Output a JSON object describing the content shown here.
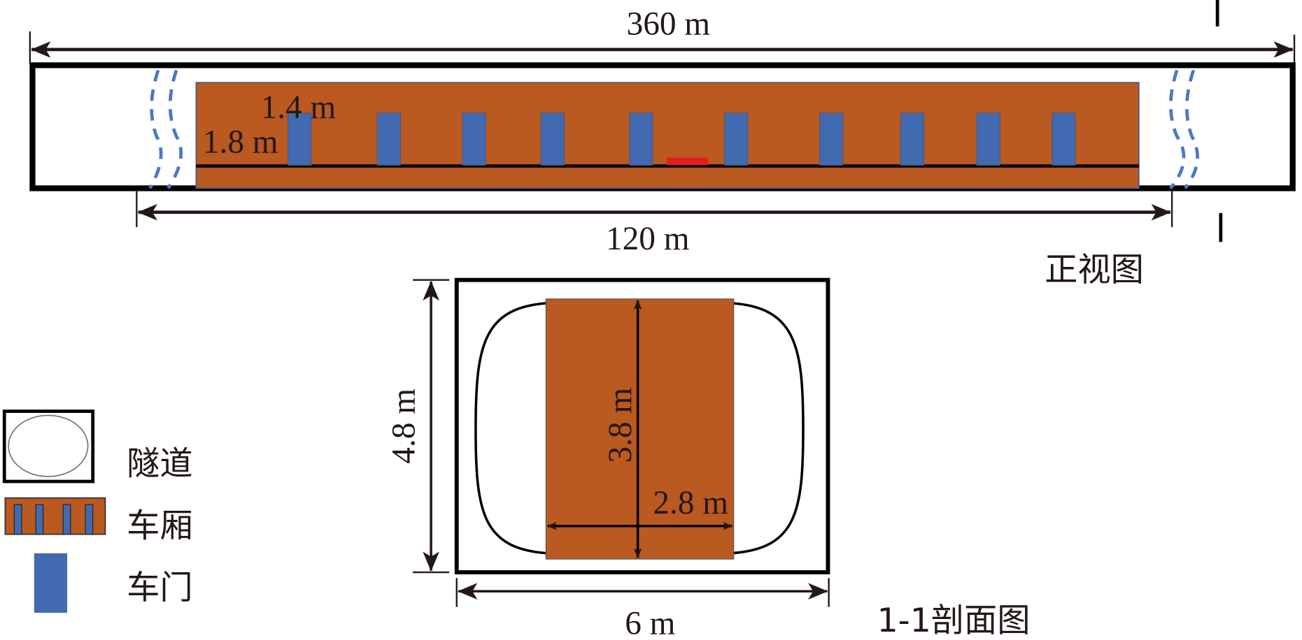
{
  "front_view": {
    "title": "正视图",
    "tunnel_length": "360 m",
    "train_length": "120 m",
    "door_height": "1.8 m",
    "door_width": "1.4 m",
    "door_count": 10
  },
  "section_view": {
    "title": "1-1剖面图",
    "tunnel_width": "6 m",
    "tunnel_height": "4.8 m",
    "car_height": "3.8 m",
    "car_width": "2.8 m"
  },
  "legend": [
    {
      "label": "隧道"
    },
    {
      "label": "车厢"
    },
    {
      "label": "车门"
    }
  ],
  "colors": {
    "car": "#BA5920",
    "door": "#416AB0",
    "fire_source": "#E31E1E",
    "wind": "#4A78C4",
    "line": "#000000"
  }
}
